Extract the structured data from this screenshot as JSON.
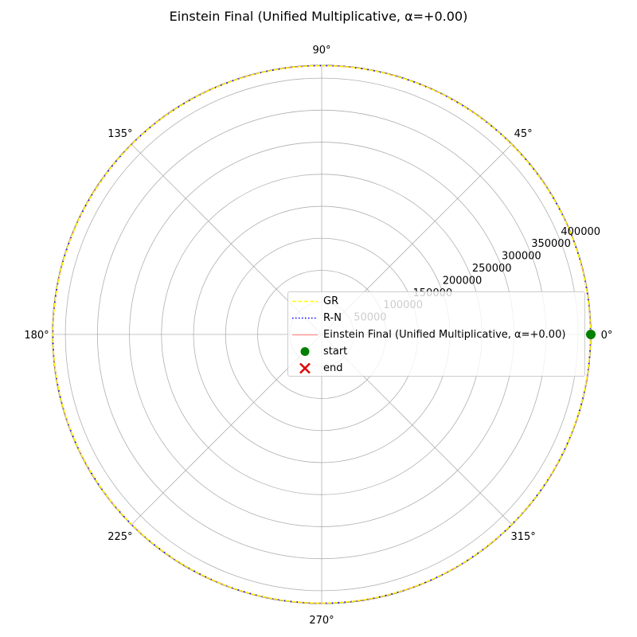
{
  "chart_data": {
    "type": "line",
    "projection": "polar",
    "title": "Einstein Final (Unified Multiplicative, α=+0.00)",
    "angle_ticks": [
      "0°",
      "45°",
      "90°",
      "135°",
      "180°",
      "225°",
      "270°",
      "315°"
    ],
    "angle_tick_values": [
      0,
      45,
      90,
      135,
      180,
      225,
      270,
      315
    ],
    "radial_ticks": [
      50000,
      100000,
      150000,
      200000,
      250000,
      300000,
      350000,
      400000
    ],
    "radial_tick_labels": [
      "50000",
      "100000",
      "150000",
      "200000",
      "250000",
      "300000",
      "350000",
      "400000"
    ],
    "rlim": [
      0,
      420000
    ],
    "grid": true,
    "legend_position": "center",
    "series": [
      {
        "name": "GR",
        "style": "dashed",
        "color": "#ffff00",
        "r": 420000,
        "theta_range": [
          0,
          360
        ]
      },
      {
        "name": "R-N",
        "style": "dotted",
        "color": "#0000ff",
        "r": 420000,
        "theta_range": [
          0,
          360
        ]
      },
      {
        "name": "Einstein Final (Unified Multiplicative, α=+0.00)",
        "style": "solid",
        "color": "#ff9999",
        "r": 420000,
        "theta_range": [
          0,
          360
        ]
      }
    ],
    "markers": [
      {
        "name": "start",
        "marker": "circle",
        "color": "#008000",
        "theta": 0,
        "r": 420000
      },
      {
        "name": "end",
        "marker": "x",
        "color": "#e00000",
        "theta": 0,
        "r": 420000
      }
    ]
  }
}
